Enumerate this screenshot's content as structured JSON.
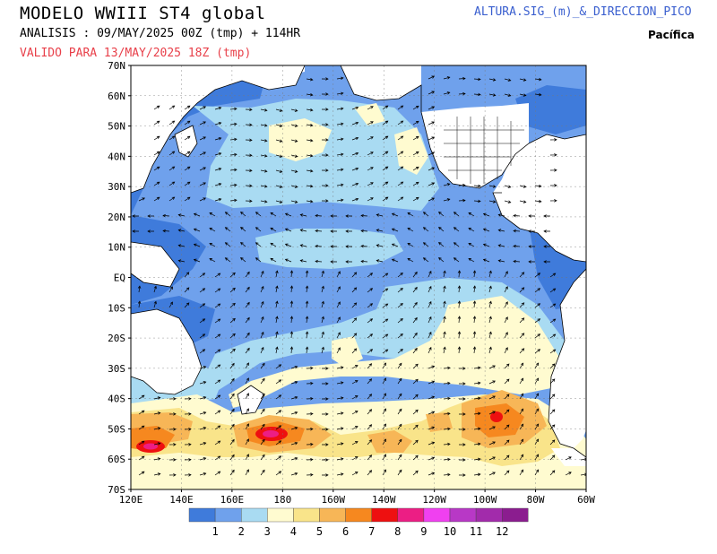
{
  "header": {
    "title": "MODELO WWIII ST4 global",
    "analysis": "ANALISIS : 09/MAY/2025 00Z  (tmp) + 114HR",
    "valid": "VALIDO PARA  13/MAY/2025 18Z  (tmp)",
    "variable": "ALTURA.SIG_(m)_&_DIRECCION_PICO",
    "region": "Pacífica"
  },
  "axes": {
    "lat_labels": [
      "70N",
      "60N",
      "50N",
      "40N",
      "30N",
      "20N",
      "10N",
      "EQ",
      "10S",
      "20S",
      "30S",
      "40S",
      "50S",
      "60S",
      "70S"
    ],
    "lon_labels": [
      "120E",
      "140E",
      "160E",
      "180",
      "160W",
      "140W",
      "120W",
      "100W",
      "80W",
      "60W"
    ]
  },
  "colorbar": {
    "labels": [
      "1",
      "2",
      "3",
      "4",
      "5",
      "6",
      "7",
      "8",
      "9",
      "10",
      "11",
      "12"
    ],
    "colors": [
      "#3f7bdb",
      "#6fa1ec",
      "#a9dbf2",
      "#fffbd0",
      "#f9e48a",
      "#f7b657",
      "#f6881f",
      "#ee1010",
      "#ec1e84",
      "#f040f0",
      "#b838c6",
      "#a22bab",
      "#8b1d8f"
    ]
  },
  "palette": {
    "land": "#ffffff",
    "ocean_base": "#6fa1ec",
    "ocean_low": "#3f7bdb",
    "accent_text": "#e8404a",
    "link_text": "#3a5fcf"
  }
}
